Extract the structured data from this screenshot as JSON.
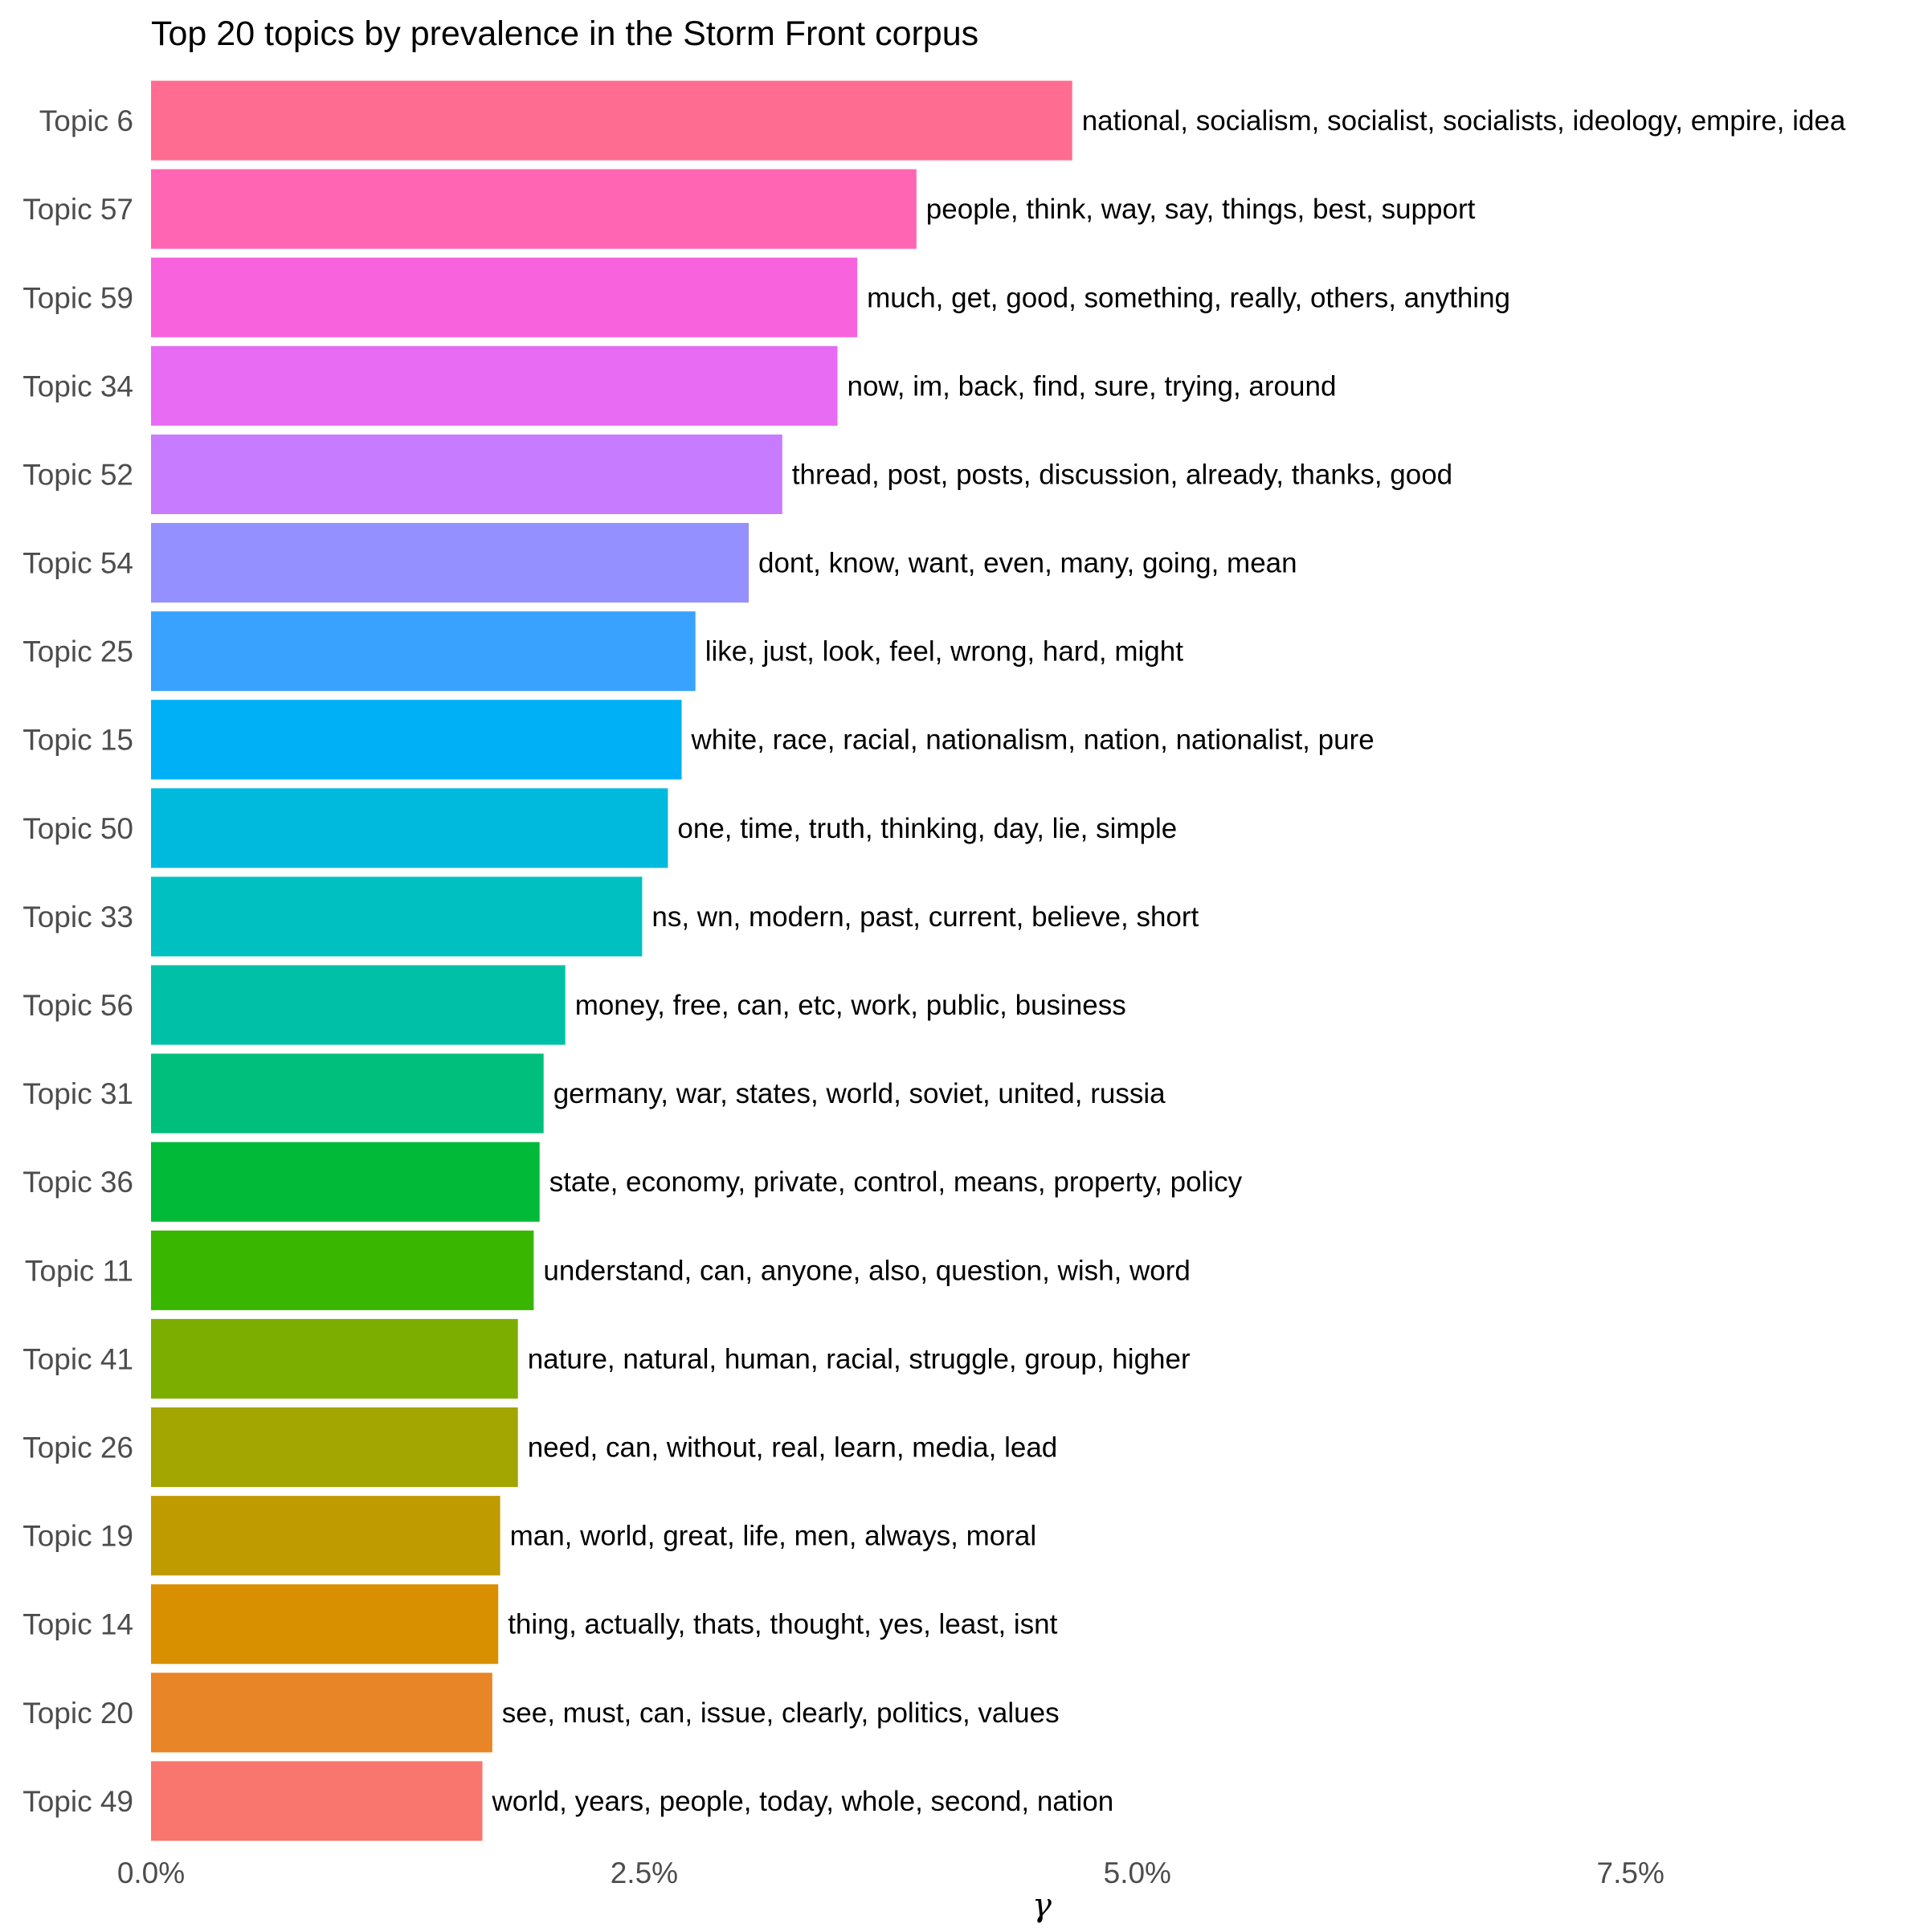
{
  "chart_data": {
    "type": "bar",
    "orientation": "horizontal",
    "title": "Top 20 topics by prevalence in the Storm Front corpus",
    "xlabel": "γ",
    "ylabel": "",
    "xlim": [
      0,
      0.09
    ],
    "x_ticks": [
      {
        "value": 0.0,
        "label": "0.0%"
      },
      {
        "value": 0.025,
        "label": "2.5%"
      },
      {
        "value": 0.05,
        "label": "5.0%"
      },
      {
        "value": 0.075,
        "label": "7.5%"
      }
    ],
    "grid": false,
    "legend": "none",
    "bars": [
      {
        "category": "Topic 6",
        "value": 0.0467,
        "terms": "national, socialism, socialist, socialists, ideology, empire, idea",
        "color": "#FF6C91"
      },
      {
        "category": "Topic 57",
        "value": 0.0388,
        "terms": "people, think, way, say, things, best, support",
        "color": "#FF65B2"
      },
      {
        "category": "Topic 59",
        "value": 0.0358,
        "terms": "much, get, good, something, really, others, anything",
        "color": "#F962DD"
      },
      {
        "category": "Topic 34",
        "value": 0.0348,
        "terms": "now, im, back, find, sure, trying, around",
        "color": "#E76BF3"
      },
      {
        "category": "Topic 52",
        "value": 0.032,
        "terms": "thread, post, posts, discussion, already, thanks, good",
        "color": "#C77CFF"
      },
      {
        "category": "Topic 54",
        "value": 0.0303,
        "terms": "dont, know, want, even, many, going, mean",
        "color": "#9590FF"
      },
      {
        "category": "Topic 25",
        "value": 0.0276,
        "terms": "like, just, look, feel, wrong, hard, might",
        "color": "#39A2FF"
      },
      {
        "category": "Topic 15",
        "value": 0.0269,
        "terms": "white, race, racial, nationalism, nation, nationalist, pure",
        "color": "#00B0F6"
      },
      {
        "category": "Topic 50",
        "value": 0.0262,
        "terms": "one, time, truth, thinking, day, lie, simple",
        "color": "#00BADE"
      },
      {
        "category": "Topic 33",
        "value": 0.0249,
        "terms": "ns, wn, modern, past, current, believe, short",
        "color": "#00C0C2"
      },
      {
        "category": "Topic 56",
        "value": 0.021,
        "terms": "money, free, can, etc, work, public, business",
        "color": "#00C1A7"
      },
      {
        "category": "Topic 31",
        "value": 0.0199,
        "terms": "germany, war, states, world, soviet, united, russia",
        "color": "#00BF7D"
      },
      {
        "category": "Topic 36",
        "value": 0.0197,
        "terms": "state, economy, private, control, means, property, policy",
        "color": "#00BA38"
      },
      {
        "category": "Topic 11",
        "value": 0.0194,
        "terms": "understand, can, anyone, also, question, wish, word",
        "color": "#39B600"
      },
      {
        "category": "Topic 41",
        "value": 0.0186,
        "terms": "nature, natural, human, racial, struggle, group, higher",
        "color": "#7CAE00"
      },
      {
        "category": "Topic 26",
        "value": 0.0186,
        "terms": "need, can, without, real, learn, media, lead",
        "color": "#A3A500"
      },
      {
        "category": "Topic 19",
        "value": 0.0177,
        "terms": "man, world, great, life, men, always, moral",
        "color": "#C09B00"
      },
      {
        "category": "Topic 14",
        "value": 0.0176,
        "terms": "thing, actually, thats, thought, yes, least, isnt",
        "color": "#D89000"
      },
      {
        "category": "Topic 20",
        "value": 0.0173,
        "terms": "see, must, can, issue, clearly, politics, values",
        "color": "#E88526"
      },
      {
        "category": "Topic 49",
        "value": 0.0168,
        "terms": "world, years, people, today, whole, second, nation",
        "color": "#F8766D"
      }
    ]
  }
}
